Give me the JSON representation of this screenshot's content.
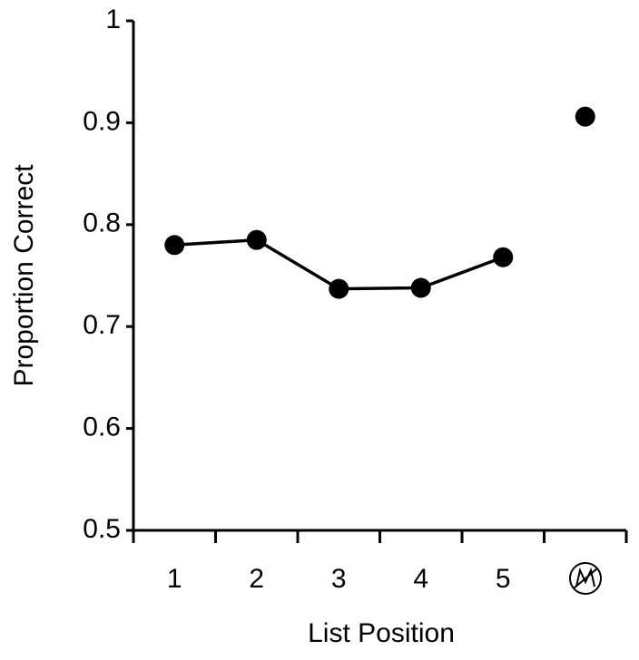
{
  "chart_data": {
    "type": "line",
    "x_label": "List Position",
    "y_label": "Proportion Correct",
    "categories": [
      "1",
      "2",
      "3",
      "4",
      "5",
      null
    ],
    "series": [
      {
        "color": "#000000",
        "values": [
          0.78,
          0.785,
          0.737,
          0.738,
          0.768,
          null
        ]
      },
      {
        "color": "#000000",
        "values": [
          null,
          null,
          null,
          null,
          null,
          0.906
        ],
        "line": false
      }
    ],
    "ylim": [
      0.5,
      1
    ],
    "yticks": [
      0.5,
      0.6,
      0.7,
      0.8,
      0.9,
      1
    ],
    "grid": false
  }
}
